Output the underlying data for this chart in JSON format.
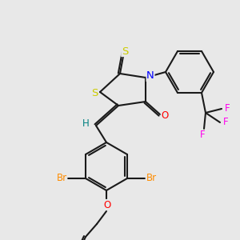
{
  "background_color": "#e8e8e8",
  "bond_color": "#1a1a1a",
  "bond_width": 1.5,
  "atom_colors": {
    "S": "#cccc00",
    "N": "#0000ff",
    "O": "#ff0000",
    "Br": "#ff8c00",
    "F": "#ff00ee",
    "H": "#008080",
    "C": "#1a1a1a"
  },
  "font_size": 8.5
}
